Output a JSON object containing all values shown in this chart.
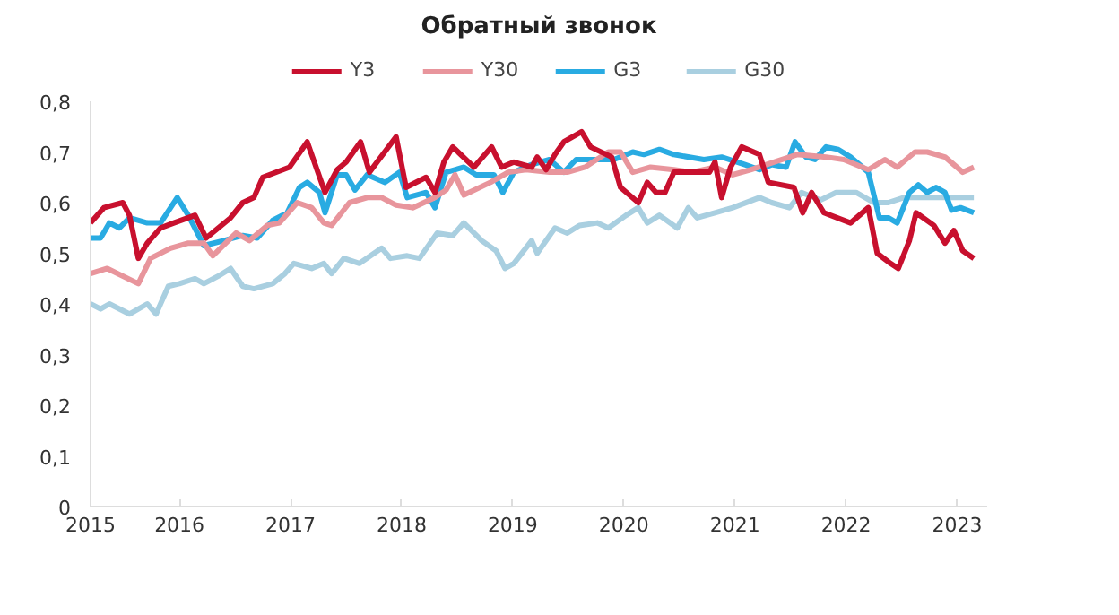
{
  "chart_data": {
    "type": "line",
    "title": "Обратный звонок",
    "xlim": [
      2015.2,
      2023.27
    ],
    "xticks": [
      {
        "value": 2015.2,
        "label": "2015"
      },
      2016,
      2017,
      2018,
      2019,
      2020,
      2021,
      2022,
      2023
    ],
    "ylim": [
      0,
      0.8
    ],
    "yticks": [
      {
        "value": 0,
        "label": "0"
      },
      {
        "value": 0.1,
        "label": "0,1"
      },
      {
        "value": 0.2,
        "label": "0,2"
      },
      {
        "value": 0.3,
        "label": "0,3"
      },
      {
        "value": 0.4,
        "label": "0,4"
      },
      {
        "value": 0.5,
        "label": "0,5"
      },
      {
        "value": 0.6,
        "label": "0,6"
      },
      {
        "value": 0.7,
        "label": "0,7"
      },
      {
        "value": 0.8,
        "label": "0,8"
      }
    ],
    "grid": false,
    "legend": "top",
    "line_style": "solid",
    "series": [
      {
        "name": "Y3",
        "color": "#c8102e",
        "x": [
          2015.2,
          2015.32,
          2015.49,
          2015.55,
          2015.63,
          2015.71,
          2015.83,
          2015.95,
          2016.14,
          2016.24,
          2016.46,
          2016.57,
          2016.67,
          2016.75,
          2016.99,
          2017.15,
          2017.31,
          2017.42,
          2017.5,
          2017.63,
          2017.71,
          2017.95,
          2018.04,
          2018.22,
          2018.3,
          2018.38,
          2018.46,
          2018.65,
          2018.81,
          2018.9,
          2019.01,
          2019.17,
          2019.22,
          2019.3,
          2019.38,
          2019.46,
          2019.62,
          2019.7,
          2019.89,
          2019.97,
          2020.13,
          2020.21,
          2020.29,
          2020.37,
          2020.45,
          2020.77,
          2020.82,
          2020.88,
          2020.96,
          2021.06,
          2021.22,
          2021.3,
          2021.53,
          2021.61,
          2021.69,
          2021.8,
          2022.04,
          2022.2,
          2022.28,
          2022.4,
          2022.47,
          2022.57,
          2022.63,
          2022.79,
          2022.89,
          2022.97,
          2023.05,
          2023.15
        ],
        "values": [
          0.56,
          0.59,
          0.6,
          0.575,
          0.49,
          0.52,
          0.55,
          0.56,
          0.575,
          0.53,
          0.57,
          0.6,
          0.61,
          0.65,
          0.67,
          0.72,
          0.62,
          0.665,
          0.68,
          0.72,
          0.66,
          0.73,
          0.63,
          0.65,
          0.62,
          0.68,
          0.71,
          0.67,
          0.71,
          0.67,
          0.68,
          0.67,
          0.69,
          0.665,
          0.695,
          0.72,
          0.74,
          0.71,
          0.69,
          0.63,
          0.6,
          0.64,
          0.62,
          0.62,
          0.66,
          0.66,
          0.68,
          0.61,
          0.67,
          0.71,
          0.695,
          0.64,
          0.63,
          0.58,
          0.62,
          0.58,
          0.56,
          0.59,
          0.5,
          0.48,
          0.47,
          0.525,
          0.58,
          0.555,
          0.52,
          0.545,
          0.505,
          0.49
        ]
      },
      {
        "name": "Y30",
        "color": "#e8959c",
        "x": [
          2015.2,
          2015.35,
          2015.63,
          2015.74,
          2015.92,
          2016.08,
          2016.22,
          2016.3,
          2016.51,
          2016.63,
          2016.79,
          2016.9,
          2016.98,
          2017.06,
          2017.19,
          2017.3,
          2017.37,
          2017.53,
          2017.69,
          2017.82,
          2017.95,
          2018.1,
          2018.3,
          2018.4,
          2018.48,
          2018.56,
          2018.8,
          2018.96,
          2019.12,
          2019.33,
          2019.49,
          2019.65,
          2019.86,
          2019.97,
          2020.08,
          2020.24,
          2020.45,
          2020.61,
          2020.82,
          2020.98,
          2021.14,
          2021.35,
          2021.56,
          2021.82,
          2021.98,
          2022.2,
          2022.35,
          2022.46,
          2022.62,
          2022.73,
          2022.89,
          2023.05,
          2023.15
        ],
        "values": [
          0.46,
          0.47,
          0.44,
          0.49,
          0.51,
          0.52,
          0.52,
          0.495,
          0.54,
          0.525,
          0.555,
          0.56,
          0.58,
          0.6,
          0.59,
          0.56,
          0.555,
          0.6,
          0.61,
          0.61,
          0.595,
          0.59,
          0.61,
          0.625,
          0.655,
          0.615,
          0.64,
          0.66,
          0.665,
          0.66,
          0.66,
          0.67,
          0.7,
          0.7,
          0.66,
          0.67,
          0.665,
          0.66,
          0.67,
          0.655,
          0.665,
          0.68,
          0.695,
          0.69,
          0.685,
          0.665,
          0.685,
          0.67,
          0.7,
          0.7,
          0.69,
          0.66,
          0.67
        ]
      },
      {
        "name": "G3",
        "color": "#29abe2",
        "x": [
          2015.2,
          2015.29,
          2015.37,
          2015.46,
          2015.55,
          2015.71,
          2015.83,
          2015.98,
          2016.08,
          2016.22,
          2016.4,
          2016.57,
          2016.7,
          2016.84,
          2016.97,
          2017.08,
          2017.15,
          2017.26,
          2017.31,
          2017.42,
          2017.5,
          2017.58,
          2017.69,
          2017.85,
          2017.98,
          2018.05,
          2018.22,
          2018.3,
          2018.4,
          2018.56,
          2018.67,
          2018.83,
          2018.91,
          2019.01,
          2019.17,
          2019.33,
          2019.46,
          2019.57,
          2019.76,
          2019.91,
          2020.08,
          2020.18,
          2020.32,
          2020.45,
          2020.72,
          2020.88,
          2021.09,
          2021.22,
          2021.33,
          2021.46,
          2021.54,
          2021.64,
          2021.72,
          2021.82,
          2021.93,
          2022.04,
          2022.2,
          2022.3,
          2022.38,
          2022.46,
          2022.57,
          2022.65,
          2022.73,
          2022.81,
          2022.89,
          2022.95,
          2023.03,
          2023.15
        ],
        "values": [
          0.53,
          0.53,
          0.56,
          0.55,
          0.57,
          0.56,
          0.56,
          0.61,
          0.575,
          0.515,
          0.525,
          0.535,
          0.53,
          0.565,
          0.58,
          0.63,
          0.64,
          0.62,
          0.58,
          0.655,
          0.655,
          0.625,
          0.655,
          0.64,
          0.66,
          0.61,
          0.62,
          0.59,
          0.66,
          0.67,
          0.655,
          0.655,
          0.62,
          0.66,
          0.675,
          0.685,
          0.66,
          0.685,
          0.685,
          0.685,
          0.7,
          0.695,
          0.705,
          0.695,
          0.685,
          0.69,
          0.675,
          0.665,
          0.675,
          0.67,
          0.72,
          0.69,
          0.685,
          0.71,
          0.705,
          0.69,
          0.66,
          0.57,
          0.57,
          0.56,
          0.62,
          0.635,
          0.62,
          0.63,
          0.62,
          0.585,
          0.59,
          0.58
        ]
      },
      {
        "name": "G30",
        "color": "#a9cfe0",
        "x": [
          2015.2,
          2015.29,
          2015.37,
          2015.55,
          2015.71,
          2015.79,
          2015.9,
          2016.0,
          2016.14,
          2016.22,
          2016.35,
          2016.46,
          2016.57,
          2016.67,
          2016.84,
          2016.95,
          2017.03,
          2017.19,
          2017.3,
          2017.37,
          2017.48,
          2017.62,
          2017.82,
          2017.9,
          2018.05,
          2018.16,
          2018.32,
          2018.46,
          2018.56,
          2018.72,
          2018.85,
          2018.93,
          2019.01,
          2019.17,
          2019.22,
          2019.38,
          2019.49,
          2019.6,
          2019.76,
          2019.86,
          2020.02,
          2020.13,
          2020.21,
          2020.32,
          2020.48,
          2020.58,
          2020.66,
          2020.82,
          2020.98,
          2021.22,
          2021.33,
          2021.49,
          2021.6,
          2021.77,
          2021.91,
          2022.09,
          2022.25,
          2022.38,
          2022.52,
          2022.73,
          2023.15
        ],
        "values": [
          0.4,
          0.39,
          0.4,
          0.38,
          0.4,
          0.38,
          0.435,
          0.44,
          0.45,
          0.44,
          0.455,
          0.47,
          0.435,
          0.43,
          0.44,
          0.46,
          0.48,
          0.47,
          0.48,
          0.46,
          0.49,
          0.48,
          0.51,
          0.49,
          0.495,
          0.49,
          0.54,
          0.535,
          0.56,
          0.525,
          0.505,
          0.47,
          0.48,
          0.525,
          0.5,
          0.55,
          0.54,
          0.555,
          0.56,
          0.55,
          0.575,
          0.59,
          0.56,
          0.575,
          0.55,
          0.59,
          0.57,
          0.58,
          0.59,
          0.61,
          0.6,
          0.59,
          0.62,
          0.605,
          0.62,
          0.62,
          0.6,
          0.6,
          0.61,
          0.61,
          0.61
        ]
      }
    ]
  }
}
